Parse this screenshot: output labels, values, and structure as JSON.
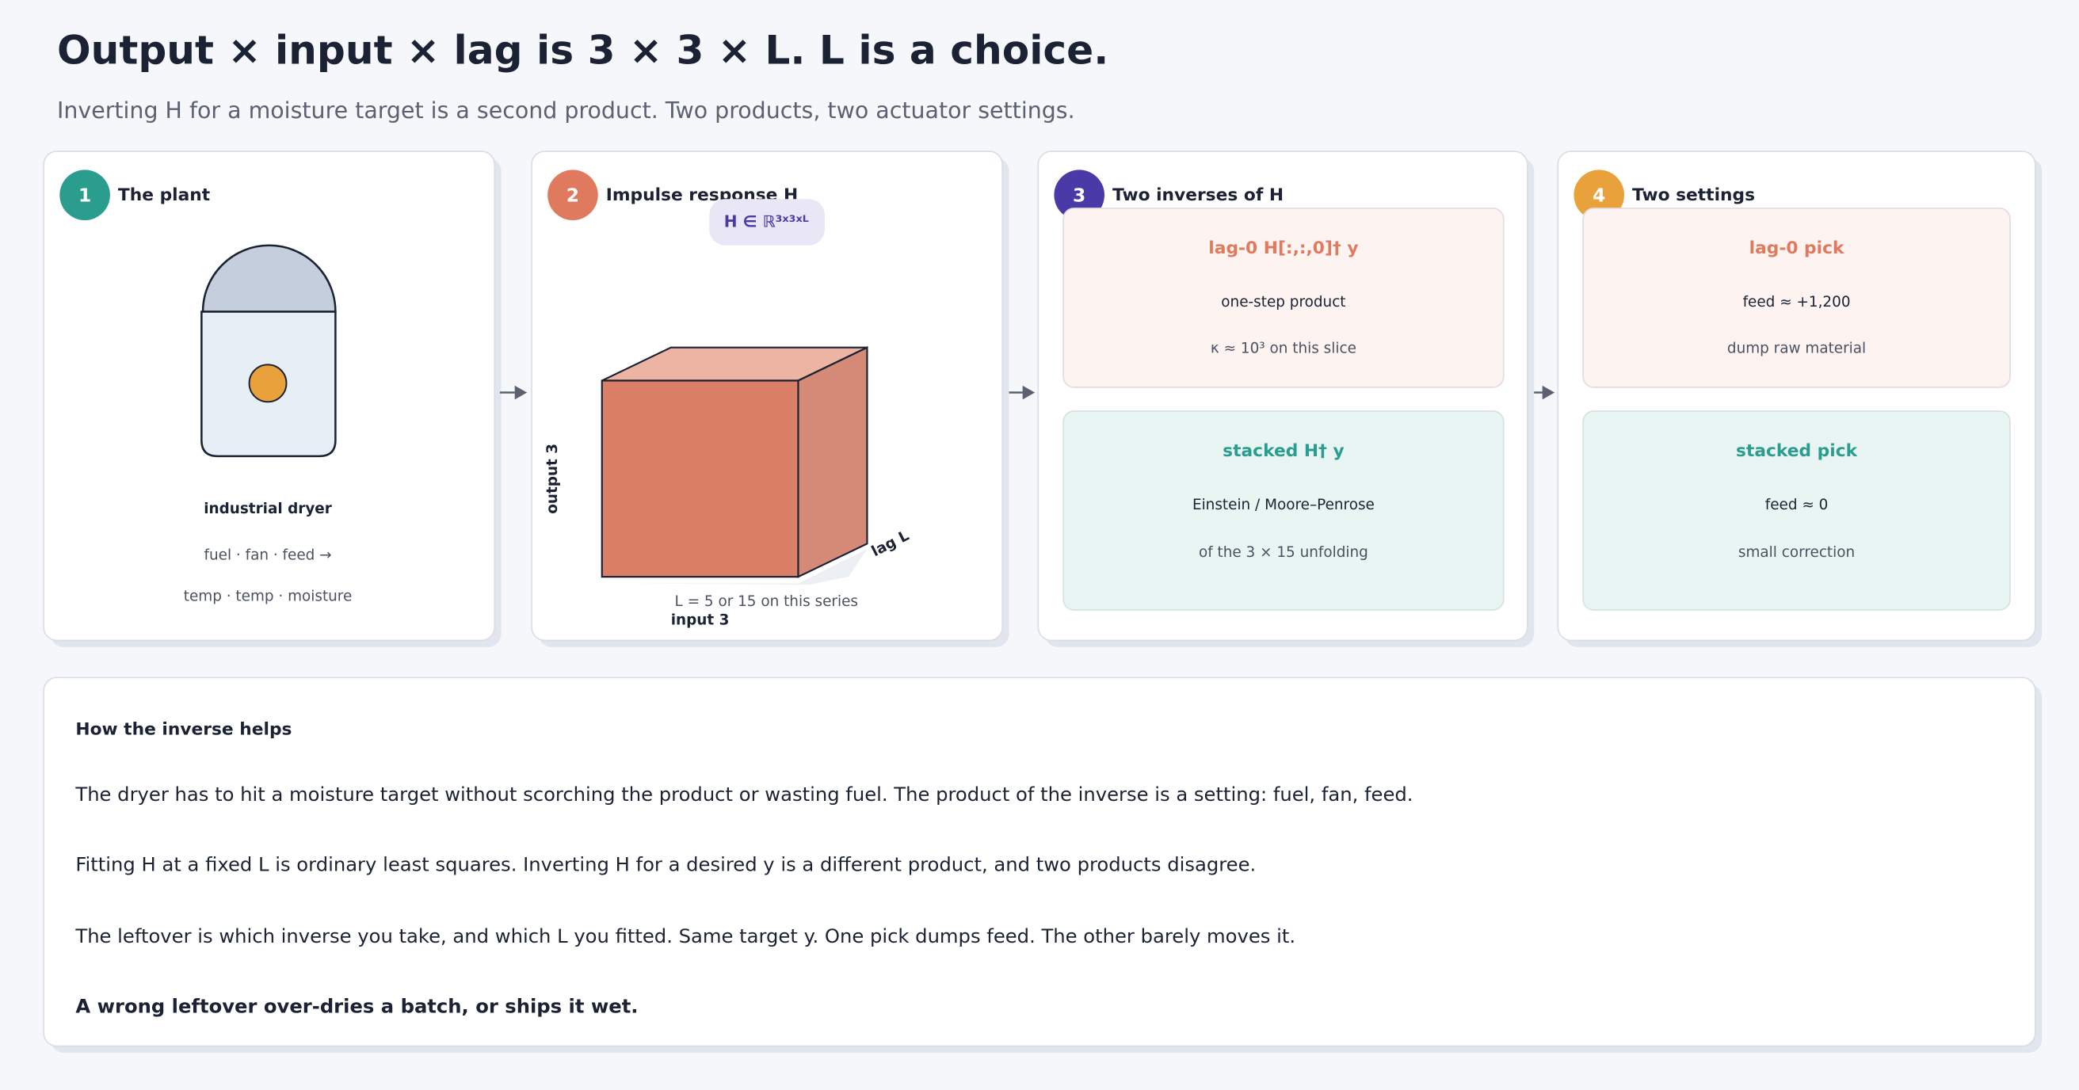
{
  "header": {
    "title": "Output × input × lag is 3 × 3 × L. L is a choice.",
    "subtitle": "Inverting H for a moisture target is a second product. Two products, two actuator settings."
  },
  "panels": [
    {
      "number": "1",
      "title": "The plant",
      "caption": "industrial dryer",
      "lines": [
        "fuel · fan · feed  →",
        "temp · temp · moisture"
      ]
    },
    {
      "number": "2",
      "title": "Impulse response  H",
      "badge": "H ∈ ℝ³ˣ³ˣᴸ",
      "axes": {
        "output": "output  3",
        "lag": "lag  L",
        "input": "input  3"
      },
      "note": "L = 5 or 15 on this series"
    },
    {
      "number": "3",
      "title": "Two inverses of H",
      "boxes": [
        {
          "title": "lag-0  H[:,:,0]† y",
          "line1": "one-step product",
          "line2": "κ ≈ 10³ on this slice"
        },
        {
          "title": "stacked  H† y",
          "line1": "Einstein / Moore–Penrose",
          "line2": "of the 3 × 15 unfolding"
        }
      ]
    },
    {
      "number": "4",
      "title": "Two settings",
      "boxes": [
        {
          "title": "lag-0 pick",
          "line1": "feed ≈ +1,200",
          "line2": "dump raw material"
        },
        {
          "title": "stacked pick",
          "line1": "feed ≈ 0",
          "line2": "small correction"
        }
      ]
    }
  ],
  "explanation": {
    "heading": "How the inverse helps",
    "paragraphs": [
      "The dryer has to hit a moisture target without scorching the product or wasting fuel. The product of the inverse is a setting: fuel, fan, feed.",
      "Fitting H at a fixed L is ordinary least squares. Inverting H for a desired y is a different product, and two products disagree.",
      "The leftover is which inverse you take, and which L you fitted. Same target y. One pick dumps feed. The other barely moves it."
    ],
    "conclusion": "A wrong leftover over-dries a batch, or ships it wet."
  }
}
